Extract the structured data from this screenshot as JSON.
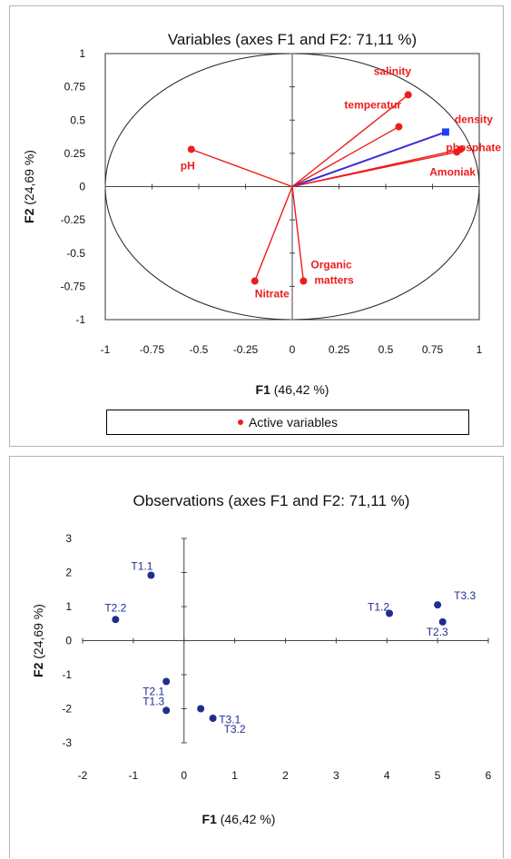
{
  "colors": {
    "variable": "#ee1c1c",
    "highlight_vector": "#3a2fd6",
    "highlight_marker": "#1e3cff",
    "observation": "#1f2d8f"
  },
  "chart_data": [
    {
      "type": "scatter",
      "title": "Variables (axes F1 and F2: 71,11 %)",
      "xlabel": "F1 (46,42 %)",
      "ylabel": "F2 (24,69 %)",
      "xlim": [
        -1,
        1
      ],
      "ylim": [
        -1,
        1
      ],
      "xticks": [
        "-1",
        "-0.75",
        "-0.5",
        "-0.25",
        "0",
        "0.25",
        "0.5",
        "0.75",
        "1"
      ],
      "yticks": [
        "1",
        "0.75",
        "0.5",
        "0.25",
        "0",
        "-0.25",
        "-0.5",
        "-0.75",
        "-1"
      ],
      "correlation_circle": true,
      "vectors_from_origin": true,
      "legend": {
        "position": "bottom",
        "label": "Active variables"
      },
      "points": [
        {
          "label": "salinity",
          "x": 0.62,
          "y": 0.69
        },
        {
          "label": "temperatur",
          "x": 0.57,
          "y": 0.45
        },
        {
          "label": "density",
          "x": 0.82,
          "y": 0.41,
          "highlight": true
        },
        {
          "label": "phosphate",
          "x": 0.9,
          "y": 0.28
        },
        {
          "label": "Amoniak",
          "x": 0.88,
          "y": 0.26
        },
        {
          "label": "pH",
          "x": -0.54,
          "y": 0.28
        },
        {
          "label": "Nitrate",
          "x": -0.2,
          "y": -0.71
        },
        {
          "label": "Organic matters",
          "x": 0.06,
          "y": -0.71
        }
      ]
    },
    {
      "type": "scatter",
      "title": "Observations (axes F1 and F2: 71,11 %)",
      "xlabel": "F1 (46,42 %)",
      "ylabel": "F2 (24,69 %)",
      "xlim": [
        -2,
        6
      ],
      "ylim": [
        -3,
        3
      ],
      "xticks": [
        "-2",
        "-1",
        "0",
        "1",
        "2",
        "3",
        "4",
        "5",
        "6"
      ],
      "yticks": [
        "3",
        "2",
        "1",
        "0",
        "-1",
        "-2",
        "-3"
      ],
      "points": [
        {
          "label": "T1.1",
          "x": -0.65,
          "y": 1.92
        },
        {
          "label": "T2.2",
          "x": -1.35,
          "y": 0.62
        },
        {
          "label": "T1.2",
          "x": 4.05,
          "y": 0.8
        },
        {
          "label": "T3.3",
          "x": 5.0,
          "y": 1.05
        },
        {
          "label": "T2.3",
          "x": 5.1,
          "y": 0.55
        },
        {
          "label": "T2.1",
          "x": -0.35,
          "y": -1.2
        },
        {
          "label": "T1.3",
          "x": -0.35,
          "y": -2.05
        },
        {
          "label": "T3.1",
          "x": 0.33,
          "y": -2.0
        },
        {
          "label": "T3.2",
          "x": 0.57,
          "y": -2.28
        }
      ]
    }
  ]
}
